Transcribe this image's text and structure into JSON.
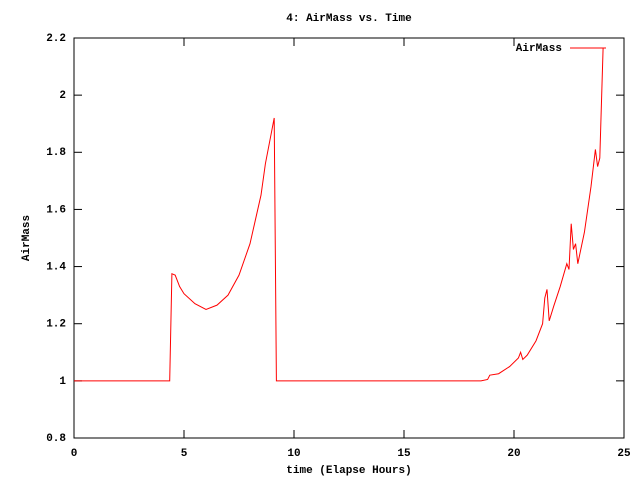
{
  "chart_data": {
    "type": "line",
    "title": "4: AirMass vs. Time",
    "x_label": "time (Elapse Hours)",
    "y_label": "AirMass",
    "legend": "top-right",
    "series": [
      {
        "name": "AirMass",
        "color": "#ff0000",
        "x": [
          0,
          4.35,
          4.45,
          4.6,
          4.8,
          5.0,
          5.5,
          6.0,
          6.5,
          7.0,
          7.5,
          8.0,
          8.5,
          8.7,
          9.0,
          9.1,
          9.2,
          18.5,
          18.8,
          18.9,
          19.3,
          19.8,
          20.2,
          20.3,
          20.4,
          20.6,
          21.0,
          21.3,
          21.4,
          21.5,
          21.6,
          21.8,
          22.1,
          22.4,
          22.5,
          22.6,
          22.7,
          22.8,
          22.9,
          23.2,
          23.5,
          23.7,
          23.8,
          23.9,
          24.05
        ],
        "values": [
          1.0,
          1.0,
          1.375,
          1.37,
          1.33,
          1.305,
          1.27,
          1.25,
          1.265,
          1.3,
          1.37,
          1.48,
          1.65,
          1.76,
          1.88,
          1.92,
          1.0,
          1.0,
          1.005,
          1.02,
          1.025,
          1.05,
          1.08,
          1.1,
          1.075,
          1.09,
          1.14,
          1.2,
          1.29,
          1.32,
          1.21,
          1.26,
          1.33,
          1.41,
          1.39,
          1.55,
          1.46,
          1.48,
          1.41,
          1.52,
          1.68,
          1.81,
          1.75,
          1.78,
          2.165
        ]
      }
    ],
    "xlim": [
      0,
      25
    ],
    "xticks": [
      0,
      5,
      10,
      15,
      20,
      25
    ],
    "ylim": [
      0.8,
      2.2
    ],
    "yticks": [
      0.8,
      1,
      1.2,
      1.4,
      1.6,
      1.8,
      2,
      2.2
    ]
  }
}
